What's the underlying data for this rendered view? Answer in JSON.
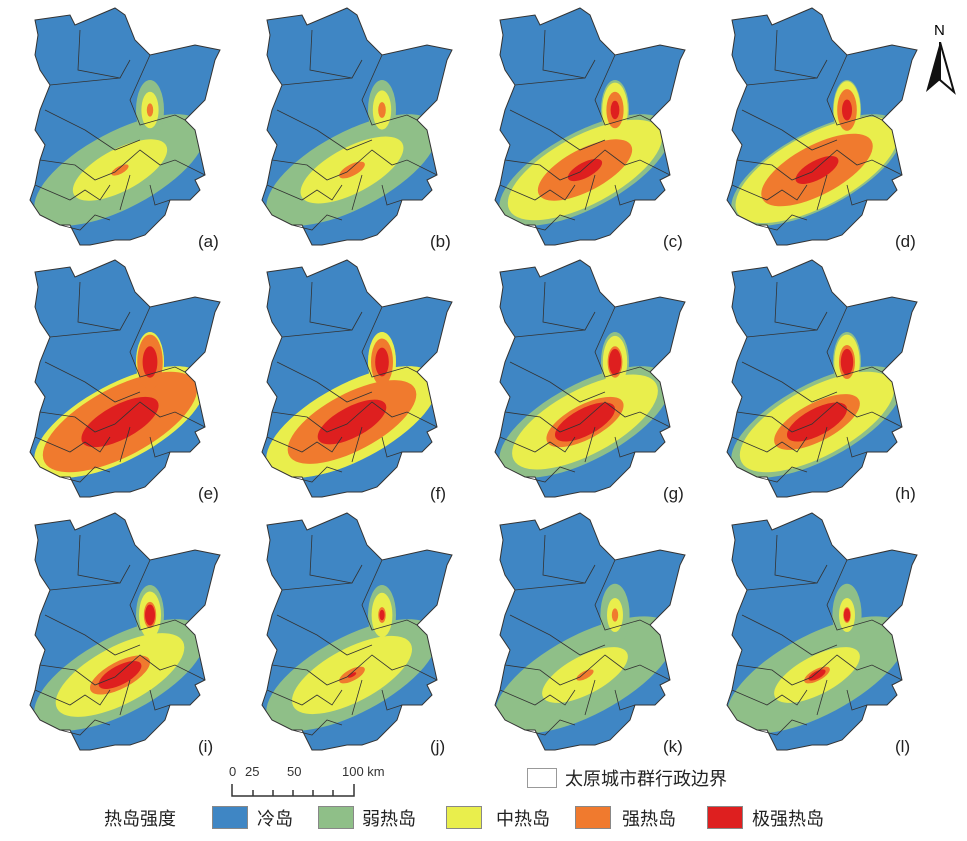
{
  "panels": [
    {
      "label": "(a)"
    },
    {
      "label": "(b)"
    },
    {
      "label": "(c)"
    },
    {
      "label": "(d)"
    },
    {
      "label": "(e)"
    },
    {
      "label": "(f)"
    },
    {
      "label": "(g)"
    },
    {
      "label": "(h)"
    },
    {
      "label": "(i)"
    },
    {
      "label": "(j)"
    },
    {
      "label": "(k)"
    },
    {
      "label": "(l)"
    }
  ],
  "north_arrow": {
    "label": "N"
  },
  "scale_bar": {
    "ticks": [
      "0",
      "25",
      "50",
      "100 km"
    ]
  },
  "boundary_legend": {
    "label": "太原城市群行政边界"
  },
  "legend": {
    "title": "热岛强度",
    "classes": [
      {
        "label": "冷岛",
        "color": "#3f86c4"
      },
      {
        "label": "弱热岛",
        "color": "#8fbf88"
      },
      {
        "label": "中热岛",
        "color": "#e9ee4c"
      },
      {
        "label": "强热岛",
        "color": "#f07a2e"
      },
      {
        "label": "极强热岛",
        "color": "#de1f1f"
      }
    ]
  }
}
